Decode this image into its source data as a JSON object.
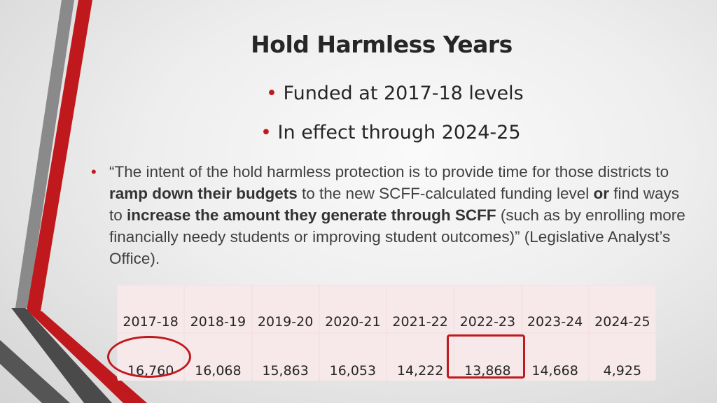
{
  "title": "Hold Harmless Years",
  "bullets": [
    "Funded at 2017-18 levels",
    "In effect through 2024-25"
  ],
  "bullet_glyph": "•",
  "quote": {
    "p1": "“The intent of the hold harmless protection is to provide time for those districts to ",
    "b1": "ramp down their budgets",
    "p2": " to the new SCFF-calculated funding level ",
    "b2": "or",
    "p3": " find ways to ",
    "b3": "increase the amount they generate through SCFF",
    "p4": " (such as by enrolling more financially needy students or improving student outcomes)” (Legislative Analyst’s Office)."
  },
  "table": {
    "years": [
      "2017-18",
      "2018-19",
      "2019-20",
      "2020-21",
      "2021-22",
      "2022-23",
      "2023-24",
      "2024-25"
    ],
    "values": [
      "16,760",
      "16,068",
      "15,863",
      "16,053",
      "14,222",
      "13,868",
      "14,668",
      "4,925"
    ]
  },
  "colors": {
    "accent": "#c0191d",
    "stripe_dark": "#4a4a4a",
    "stripe_gray": "#8a8a8a",
    "table_bg": "#f7e9e9"
  }
}
